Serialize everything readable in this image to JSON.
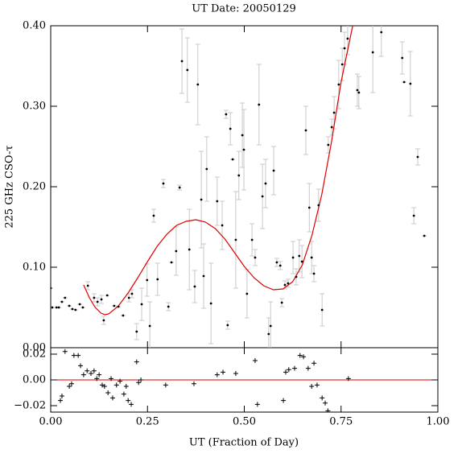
{
  "chart_data": [
    {
      "type": "scatter",
      "title": "UT Date: 20050129",
      "ylabel": "225 GHz CSO-τ",
      "ylim": [
        0,
        0.4
      ],
      "yticks": [
        {
          "value": 0,
          "label": "0.00"
        },
        {
          "value": 0.1,
          "label": "0.10"
        },
        {
          "value": 0.2,
          "label": "0.20"
        },
        {
          "value": 0.3,
          "label": "0.30"
        },
        {
          "value": 0.4,
          "label": "0.40"
        }
      ],
      "color": "#000000",
      "error_color": "#c8c8c8",
      "x": [
        0.0,
        0.004,
        0.015,
        0.021,
        0.029,
        0.037,
        0.048,
        0.056,
        0.064,
        0.075,
        0.083,
        0.096,
        0.112,
        0.121,
        0.131,
        0.137,
        0.146,
        0.164,
        0.175,
        0.187,
        0.202,
        0.21,
        0.222,
        0.235,
        0.249,
        0.256,
        0.266,
        0.276,
        0.291,
        0.304,
        0.312,
        0.324,
        0.333,
        0.339,
        0.353,
        0.358,
        0.372,
        0.38,
        0.389,
        0.395,
        0.403,
        0.414,
        0.43,
        0.443,
        0.453,
        0.457,
        0.464,
        0.47,
        0.478,
        0.486,
        0.495,
        0.499,
        0.507,
        0.52,
        0.528,
        0.538,
        0.547,
        0.555,
        0.563,
        0.568,
        0.576,
        0.584,
        0.593,
        0.597,
        0.605,
        0.613,
        0.626,
        0.634,
        0.642,
        0.649,
        0.659,
        0.668,
        0.674,
        0.68,
        0.692,
        0.701,
        0.717,
        0.726,
        0.732,
        0.744,
        0.753,
        0.759,
        0.767,
        0.792,
        0.796,
        0.832,
        0.854,
        0.908,
        0.913,
        0.929,
        0.938,
        0.948,
        0.965
      ],
      "values": [
        0.074,
        0.05,
        0.05,
        0.05,
        0.057,
        0.062,
        0.052,
        0.048,
        0.047,
        0.054,
        0.05,
        0.077,
        0.062,
        0.057,
        0.06,
        0.034,
        0.065,
        0.052,
        0.051,
        0.04,
        0.062,
        0.067,
        0.02,
        0.054,
        0.084,
        0.027,
        0.164,
        0.085,
        0.204,
        0.051,
        0.106,
        0.12,
        0.199,
        0.356,
        0.345,
        0.122,
        0.076,
        0.327,
        0.184,
        0.089,
        0.222,
        0.055,
        0.182,
        0.152,
        0.29,
        0.028,
        0.272,
        0.234,
        0.134,
        0.214,
        0.264,
        0.246,
        0.067,
        0.134,
        0.112,
        0.302,
        0.188,
        0.204,
        0.017,
        0.027,
        0.22,
        0.106,
        0.102,
        0.056,
        0.078,
        0.08,
        0.112,
        0.088,
        0.114,
        0.107,
        0.27,
        0.174,
        0.112,
        0.092,
        0.177,
        0.047,
        0.252,
        0.274,
        0.292,
        0.327,
        0.352,
        0.372,
        0.384,
        0.32,
        0.317,
        0.367,
        0.392,
        0.36,
        0.33,
        0.328,
        0.164,
        0.237,
        0.139
      ],
      "errors": [
        0,
        0,
        0,
        0,
        0,
        0,
        0,
        0,
        0,
        0,
        0,
        0.005,
        0.005,
        0.005,
        0.005,
        0.005,
        0,
        0,
        0,
        0,
        0.005,
        0.005,
        0.01,
        0.02,
        0.02,
        0.03,
        0.008,
        0.02,
        0.005,
        0.005,
        0,
        0.03,
        0.003,
        0.04,
        0.04,
        0.05,
        0.02,
        0.05,
        0.06,
        0.04,
        0.04,
        0.05,
        0.03,
        0.03,
        0.005,
        0.005,
        0.02,
        0,
        0.06,
        0.03,
        0.04,
        0.05,
        0.03,
        0.02,
        0.01,
        0.05,
        0.04,
        0.03,
        0.02,
        0.03,
        0.03,
        0.005,
        0.005,
        0.005,
        0.005,
        0.005,
        0.02,
        0.01,
        0.02,
        0.02,
        0.03,
        0.03,
        0.02,
        0.01,
        0.02,
        0.02,
        0.01,
        0.01,
        0.02,
        0.03,
        0.02,
        0.02,
        0.02,
        0.02,
        0.02,
        0.05,
        0.03,
        0.02,
        0,
        0.04,
        0.01,
        0.01,
        0
      ],
      "fit": {
        "color": "#e00000",
        "x": [
          0.085,
          0.1,
          0.115,
          0.13,
          0.14,
          0.15,
          0.175,
          0.2,
          0.225,
          0.25,
          0.275,
          0.3,
          0.325,
          0.35,
          0.375,
          0.4,
          0.425,
          0.45,
          0.475,
          0.5,
          0.525,
          0.55,
          0.575,
          0.6,
          0.625,
          0.65,
          0.675,
          0.7,
          0.725,
          0.75,
          0.78
        ],
        "values": [
          0.078,
          0.062,
          0.05,
          0.043,
          0.041,
          0.042,
          0.052,
          0.068,
          0.087,
          0.107,
          0.126,
          0.141,
          0.152,
          0.157,
          0.159,
          0.156,
          0.148,
          0.135,
          0.118,
          0.101,
          0.087,
          0.077,
          0.072,
          0.073,
          0.082,
          0.103,
          0.14,
          0.19,
          0.255,
          0.33,
          0.4
        ]
      }
    },
    {
      "type": "residual",
      "xlabel": "UT (Fraction of Day)",
      "xlim": [
        0,
        1
      ],
      "ylim": [
        -0.025,
        0.025
      ],
      "xticks": [
        {
          "value": 0,
          "label": "0.00"
        },
        {
          "value": 0.25,
          "label": "0.25"
        },
        {
          "value": 0.5,
          "label": "0.50"
        },
        {
          "value": 0.75,
          "label": "0.75"
        },
        {
          "value": 1,
          "label": "1.00"
        }
      ],
      "yticks": [
        {
          "value": -0.02,
          "label": "−0.02"
        },
        {
          "value": 0,
          "label": "0.00"
        },
        {
          "value": 0.02,
          "label": "0.02"
        }
      ],
      "hline": {
        "y": 0,
        "color": "#e00000"
      },
      "color": "#000000",
      "x": [
        0.025,
        0.029,
        0.037,
        0.048,
        0.054,
        0.06,
        0.071,
        0.077,
        0.085,
        0.094,
        0.104,
        0.112,
        0.119,
        0.125,
        0.133,
        0.139,
        0.148,
        0.156,
        0.16,
        0.17,
        0.179,
        0.189,
        0.195,
        0.2,
        0.208,
        0.222,
        0.227,
        0.233,
        0.297,
        0.37,
        0.43,
        0.445,
        0.478,
        0.528,
        0.534,
        0.601,
        0.607,
        0.615,
        0.63,
        0.644,
        0.653,
        0.665,
        0.674,
        0.68,
        0.688,
        0.701,
        0.709,
        0.716,
        0.769
      ],
      "values": [
        -0.016,
        -0.0125,
        0.022,
        -0.005,
        -0.003,
        0.019,
        0.019,
        0.011,
        0.004,
        0.007,
        0.005,
        0.007,
        0.001,
        0.004,
        -0.004,
        -0.005,
        -0.01,
        0.001,
        -0.014,
        -0.004,
        -0.001,
        -0.011,
        -0.005,
        -0.016,
        -0.019,
        0.014,
        -0.002,
        0,
        -0.004,
        -0.003,
        0.004,
        0.006,
        0.005,
        0.015,
        -0.019,
        -0.016,
        0.006,
        0.008,
        0.009,
        0.019,
        0.018,
        0.009,
        -0.005,
        0.013,
        -0.004,
        -0.014,
        -0.018,
        -0.024,
        0.001
      ]
    }
  ]
}
